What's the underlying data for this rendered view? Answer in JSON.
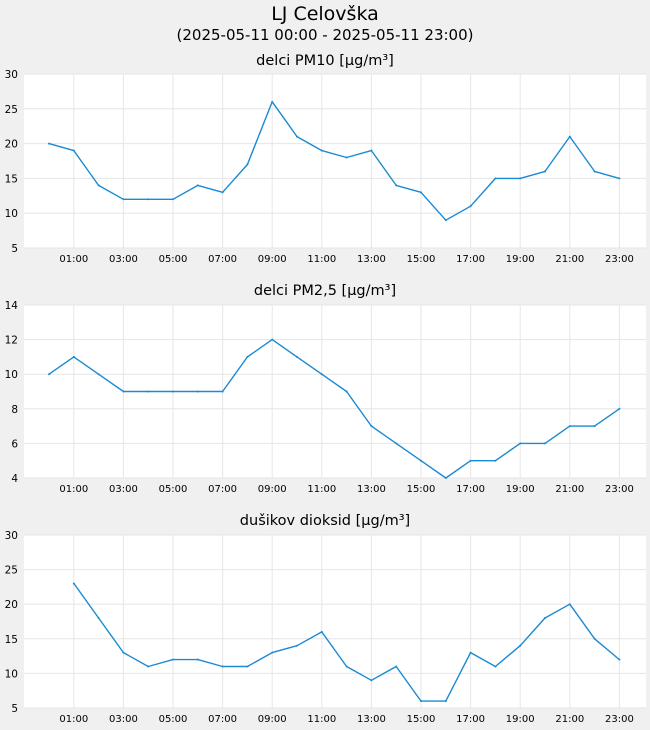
{
  "header": {
    "title": "LJ Celovška",
    "subtitle": "(2025-05-11 00:00 - 2025-05-11 23:00)"
  },
  "colors": {
    "background": "#f0f0f0",
    "plot_area": "#ffffff",
    "grid": "#e6e6e6",
    "line": "#1a8ad4"
  },
  "chart_data": [
    {
      "type": "line",
      "title": "delci PM10 [µg/m³]",
      "x": [
        0,
        1,
        2,
        3,
        4,
        5,
        6,
        7,
        8,
        9,
        10,
        11,
        12,
        13,
        14,
        15,
        16,
        17,
        18,
        19,
        20,
        21,
        22,
        23
      ],
      "xtick_values": [
        1,
        3,
        5,
        7,
        9,
        11,
        13,
        15,
        17,
        19,
        21,
        23
      ],
      "xtick_labels": [
        "01:00",
        "03:00",
        "05:00",
        "07:00",
        "09:00",
        "11:00",
        "13:00",
        "15:00",
        "17:00",
        "19:00",
        "21:00",
        "23:00"
      ],
      "yticks": [
        5,
        10,
        15,
        20,
        25,
        30
      ],
      "ylim": [
        5,
        30
      ],
      "grid": true,
      "series": [
        {
          "values": [
            20,
            19,
            14,
            12,
            12,
            12,
            14,
            13,
            17,
            26,
            21,
            19,
            18,
            19,
            14,
            13,
            9,
            11,
            15,
            15,
            16,
            21,
            16,
            15
          ]
        }
      ]
    },
    {
      "type": "line",
      "title": "delci PM2,5 [µg/m³]",
      "x": [
        0,
        1,
        2,
        3,
        4,
        5,
        6,
        7,
        8,
        9,
        10,
        11,
        12,
        13,
        14,
        15,
        16,
        17,
        18,
        19,
        20,
        21,
        22,
        23
      ],
      "xtick_values": [
        1,
        3,
        5,
        7,
        9,
        11,
        13,
        15,
        17,
        19,
        21,
        23
      ],
      "xtick_labels": [
        "01:00",
        "03:00",
        "05:00",
        "07:00",
        "09:00",
        "11:00",
        "13:00",
        "15:00",
        "17:00",
        "19:00",
        "21:00",
        "23:00"
      ],
      "yticks": [
        4,
        6,
        8,
        10,
        12,
        14
      ],
      "ylim": [
        4,
        14
      ],
      "grid": true,
      "series": [
        {
          "values": [
            10,
            11,
            10,
            9,
            9,
            9,
            9,
            9,
            11,
            12,
            11,
            10,
            9,
            7,
            6,
            5,
            4,
            5,
            5,
            6,
            6,
            7,
            7,
            8
          ]
        }
      ]
    },
    {
      "type": "line",
      "title": "dušikov dioksid [µg/m³]",
      "x": [
        1,
        2,
        3,
        4,
        5,
        6,
        7,
        8,
        9,
        10,
        11,
        12,
        13,
        14,
        15,
        16,
        17,
        18,
        19,
        20,
        21,
        22,
        23
      ],
      "xtick_values": [
        1,
        3,
        5,
        7,
        9,
        11,
        13,
        15,
        17,
        19,
        21,
        23
      ],
      "xtick_labels": [
        "01:00",
        "03:00",
        "05:00",
        "07:00",
        "09:00",
        "11:00",
        "13:00",
        "15:00",
        "17:00",
        "19:00",
        "21:00",
        "23:00"
      ],
      "yticks": [
        5,
        10,
        15,
        20,
        25,
        30
      ],
      "ylim": [
        5,
        30
      ],
      "grid": true,
      "series": [
        {
          "values": [
            23,
            18,
            13,
            11,
            12,
            12,
            11,
            11,
            13,
            14,
            16,
            11,
            9,
            11,
            6,
            6,
            13,
            11,
            14,
            18,
            20,
            15,
            12
          ]
        }
      ]
    }
  ]
}
